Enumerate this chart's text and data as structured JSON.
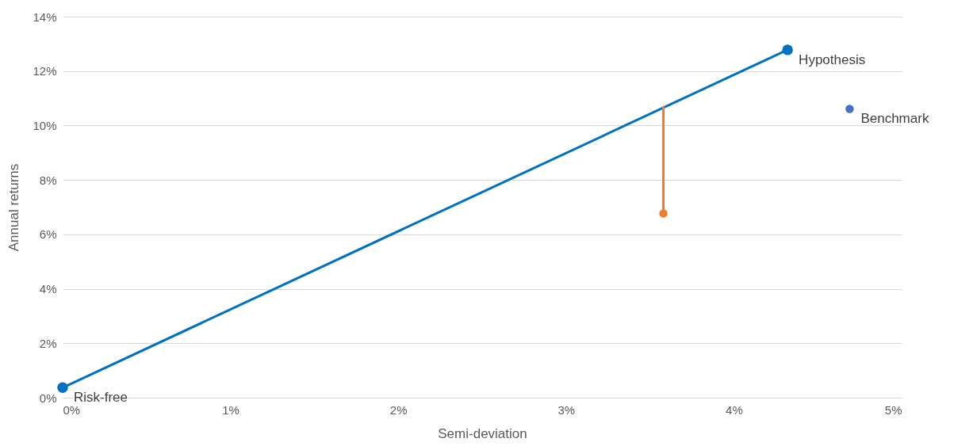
{
  "chart_data": {
    "type": "line",
    "xlabel": "Semi-deviation",
    "ylabel": "Annual returns",
    "xlim": [
      0,
      5
    ],
    "xticks": [
      {
        "value": 0,
        "label": "0%"
      },
      {
        "value": 1,
        "label": "1%"
      },
      {
        "value": 2,
        "label": "2%"
      },
      {
        "value": 3,
        "label": "3%"
      },
      {
        "value": 4,
        "label": "4%"
      },
      {
        "value": 5,
        "label": "5%"
      }
    ],
    "ylim": [
      0,
      14
    ],
    "yticks": [
      {
        "value": 0,
        "label": "0%"
      },
      {
        "value": 2,
        "label": "2%"
      },
      {
        "value": 4,
        "label": "4%"
      },
      {
        "value": 6,
        "label": "6%"
      },
      {
        "value": 8,
        "label": "8%"
      },
      {
        "value": 10,
        "label": "10%"
      },
      {
        "value": 12,
        "label": "12%"
      },
      {
        "value": 14,
        "label": "14%"
      }
    ],
    "grid": "y",
    "marker": "circle",
    "line_style": "solid",
    "series": [
      {
        "color": "#0070c0",
        "x": [
          0,
          4.32
        ],
        "values": [
          0.37,
          12.78
        ]
      },
      {
        "type": "scatter",
        "color": "#4472c4",
        "x": [
          4.69
        ],
        "values": [
          10.61
        ]
      },
      {
        "color": "#ed7d31",
        "marker": "none",
        "x": [
          3.58,
          3.58
        ],
        "values": [
          10.68,
          6.77
        ]
      },
      {
        "type": "scatter",
        "color": "#ed7d31",
        "x": [
          3.58
        ],
        "values": [
          6.77
        ]
      }
    ],
    "annotations": [
      {
        "text": "Risk-free",
        "x": 0,
        "y": 0.37
      },
      {
        "text": "Hypothesis",
        "x": 4.32,
        "y": 12.78
      },
      {
        "text": "Benchmark",
        "x": 4.69,
        "y": 10.61
      }
    ]
  }
}
